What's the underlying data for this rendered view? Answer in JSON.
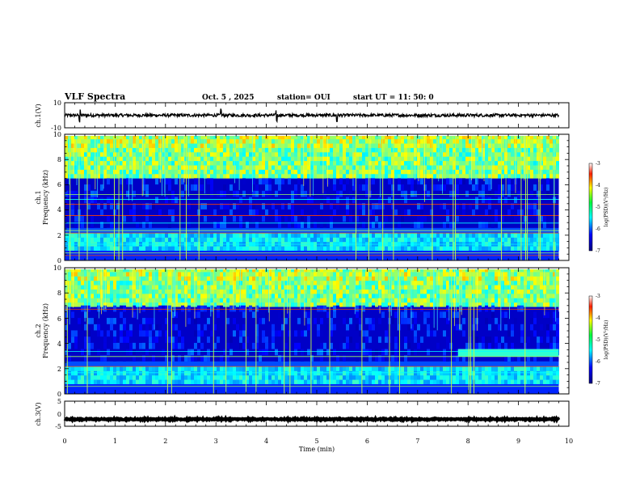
{
  "header": {
    "title": "VLF Spectra",
    "date": "Oct. 5 , 2025",
    "station": "station= OUI",
    "start": "start  UT =   11: 50: 0"
  },
  "chart_data": {
    "type": "heatmap",
    "title": "VLF Spectra",
    "xlabel": "Time (min)",
    "xlim": [
      0,
      10
    ],
    "x_ticks": [
      "0",
      "1",
      "2",
      "3",
      "4",
      "5",
      "6",
      "7",
      "8",
      "9",
      "10"
    ],
    "data_end_min": 9.8,
    "panels": [
      {
        "id": "ch1-wave",
        "kind": "waveform",
        "ylabel": "ch.1(V)",
        "ylim": [
          -10,
          10
        ],
        "y_ticks": [
          "10",
          "-10"
        ],
        "offset": 0,
        "amplitude": 1.2,
        "spike_times": [
          3.1,
          4.2,
          0.3,
          5.4
        ]
      },
      {
        "id": "ch1-spec",
        "kind": "spectrogram",
        "ylabel": [
          "ch.1",
          "Frequency  (kHz)"
        ],
        "ylim": [
          0,
          10
        ],
        "y_ticks": [
          "0",
          "2",
          "4",
          "6",
          "8",
          "10"
        ],
        "quiet_band_khz": [
          2.6,
          6.6
        ],
        "active_band_khz": [
          6.6,
          10
        ],
        "lower_band_khz": [
          0.8,
          2.2
        ],
        "tone_lines_khz": [
          4.5,
          4.9,
          5.3,
          3.6,
          3.0,
          2.4,
          2.2,
          1.3,
          0.6,
          0.4
        ],
        "colorbar": {
          "label": "log(PSD)(V²/Hz)",
          "range": [
            -7,
            -3
          ],
          "ticks": [
            "-3",
            "-4",
            "-5",
            "-6",
            "-7"
          ]
        }
      },
      {
        "id": "ch2-spec",
        "kind": "spectrogram",
        "ylabel": [
          "ch.2",
          "Frequency  (kHz)"
        ],
        "ylim": [
          0,
          10
        ],
        "y_ticks": [
          "0",
          "2",
          "4",
          "6",
          "8",
          "10"
        ],
        "quiet_band_khz": [
          2.6,
          7.0
        ],
        "active_band_khz": [
          7.0,
          10
        ],
        "lower_band_khz": [
          0.8,
          2.2
        ],
        "tone_lines_khz": [
          6.8,
          3.4,
          3.0,
          2.2,
          1.7,
          0.6
        ],
        "late_band": {
          "start_min": 7.8,
          "khz": [
            3.0,
            3.6
          ]
        },
        "colorbar": {
          "label": "log(PSD)(V²/Hz)",
          "range": [
            -7,
            -3
          ],
          "ticks": [
            "-3",
            "-4",
            "-5",
            "-6",
            "-7"
          ]
        }
      },
      {
        "id": "ch3-wave",
        "kind": "waveform",
        "ylabel": "ch.3(V)",
        "ylim": [
          -5,
          5
        ],
        "y_ticks": [
          "5",
          "0",
          "-5"
        ],
        "offset": -2.2,
        "amplitude": 0.25,
        "spike_times": []
      }
    ]
  }
}
